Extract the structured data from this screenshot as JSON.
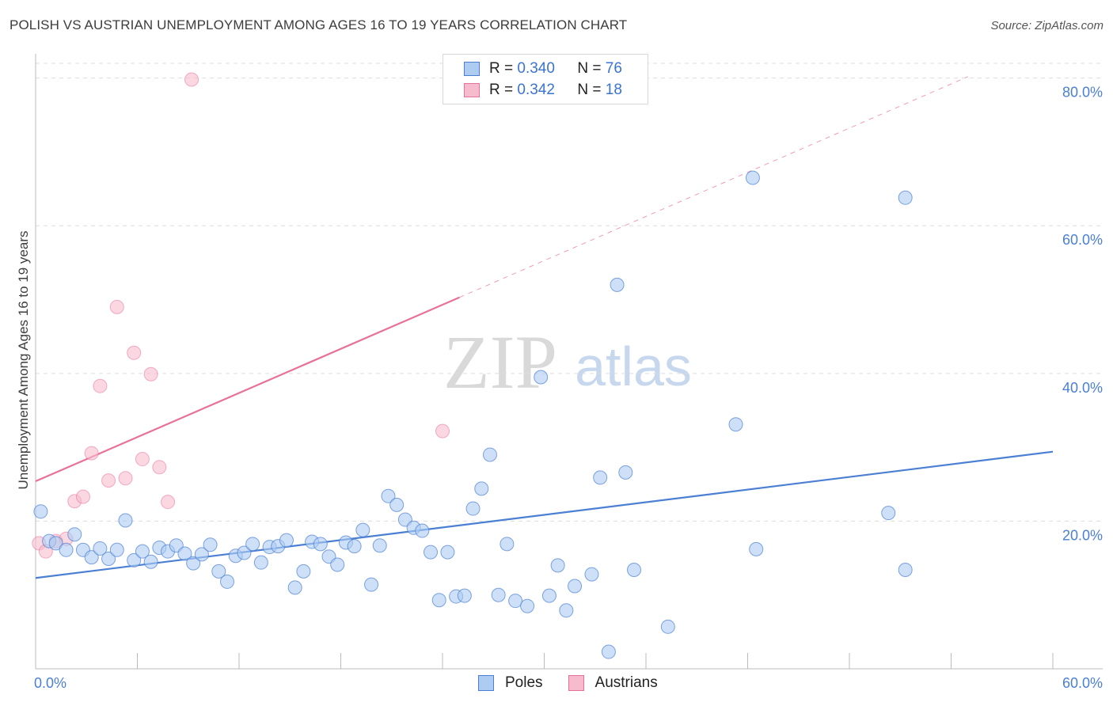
{
  "header": {
    "title": "POLISH VS AUSTRIAN UNEMPLOYMENT AMONG AGES 16 TO 19 YEARS CORRELATION CHART",
    "source": "Source: ZipAtlas.com"
  },
  "watermark": {
    "zip": "ZIP",
    "atlas": "atlas"
  },
  "colors": {
    "poles": "#4a7fd4",
    "poles_fill": "#aecbf2",
    "austrians": "#e8719a",
    "austrians_fill": "#f6bccd",
    "axis_text": "#4a7fd4"
  },
  "legend": {
    "rows": [
      {
        "r_label": "R =",
        "r_value": "0.340",
        "n_label": "N =",
        "n_value": "76"
      },
      {
        "r_label": "R =",
        "r_value": "0.342",
        "n_label": "N =",
        "n_value": "18"
      }
    ],
    "bottom": [
      "Poles",
      "Austrians"
    ]
  },
  "chart_data": {
    "type": "scatter",
    "title": "POLISH VS AUSTRIAN UNEMPLOYMENT AMONG AGES 16 TO 19 YEARS CORRELATION CHART",
    "xlabel": "",
    "ylabel": "Unemployment Among Ages 16 to 19 years",
    "xlim": [
      0,
      60
    ],
    "ylim": [
      0,
      82
    ],
    "x_tick_labels": [
      "0.0%",
      "60.0%"
    ],
    "y_ticks": [
      20,
      40,
      60,
      80
    ],
    "y_tick_labels": [
      "20.0%",
      "40.0%",
      "60.0%",
      "80.0%"
    ],
    "grid": true,
    "legend_position": "top-center",
    "series": [
      {
        "name": "Poles",
        "r": 0.34,
        "n": 76,
        "trend": {
          "x": [
            0,
            60
          ],
          "y": [
            12.3,
            29.4
          ]
        },
        "points": [
          [
            0.3,
            21.3
          ],
          [
            0.8,
            17.3
          ],
          [
            1.2,
            17.0
          ],
          [
            1.8,
            16.1
          ],
          [
            2.3,
            18.2
          ],
          [
            2.8,
            16.1
          ],
          [
            3.3,
            15.1
          ],
          [
            3.8,
            16.3
          ],
          [
            4.3,
            14.9
          ],
          [
            4.8,
            16.1
          ],
          [
            5.3,
            20.1
          ],
          [
            5.8,
            14.7
          ],
          [
            6.3,
            15.9
          ],
          [
            6.8,
            14.5
          ],
          [
            7.3,
            16.4
          ],
          [
            7.8,
            15.9
          ],
          [
            8.3,
            16.7
          ],
          [
            8.8,
            15.6
          ],
          [
            9.3,
            14.3
          ],
          [
            9.8,
            15.5
          ],
          [
            10.3,
            16.8
          ],
          [
            10.8,
            13.2
          ],
          [
            11.3,
            11.8
          ],
          [
            11.8,
            15.3
          ],
          [
            12.3,
            15.7
          ],
          [
            12.8,
            16.9
          ],
          [
            13.3,
            14.4
          ],
          [
            13.8,
            16.5
          ],
          [
            14.3,
            16.6
          ],
          [
            14.8,
            17.4
          ],
          [
            15.3,
            11.0
          ],
          [
            15.8,
            13.2
          ],
          [
            16.3,
            17.2
          ],
          [
            16.8,
            16.9
          ],
          [
            17.3,
            15.2
          ],
          [
            17.8,
            14.1
          ],
          [
            18.3,
            17.1
          ],
          [
            18.8,
            16.6
          ],
          [
            19.3,
            18.8
          ],
          [
            19.8,
            11.4
          ],
          [
            20.3,
            16.7
          ],
          [
            20.8,
            23.4
          ],
          [
            21.3,
            22.2
          ],
          [
            21.8,
            20.2
          ],
          [
            22.3,
            19.1
          ],
          [
            22.8,
            18.7
          ],
          [
            23.3,
            15.8
          ],
          [
            23.8,
            9.3
          ],
          [
            24.3,
            15.8
          ],
          [
            24.8,
            9.8
          ],
          [
            25.3,
            9.9
          ],
          [
            25.8,
            21.7
          ],
          [
            26.3,
            24.4
          ],
          [
            26.8,
            29.0
          ],
          [
            27.3,
            10.0
          ],
          [
            27.8,
            16.9
          ],
          [
            28.3,
            9.2
          ],
          [
            29.0,
            8.5
          ],
          [
            29.8,
            39.5
          ],
          [
            30.3,
            9.9
          ],
          [
            30.8,
            14.0
          ],
          [
            31.3,
            7.9
          ],
          [
            31.8,
            11.2
          ],
          [
            32.8,
            12.8
          ],
          [
            33.3,
            25.9
          ],
          [
            33.8,
            2.3
          ],
          [
            34.3,
            52.0
          ],
          [
            34.8,
            26.6
          ],
          [
            35.3,
            13.4
          ],
          [
            37.3,
            5.7
          ],
          [
            41.3,
            33.1
          ],
          [
            42.3,
            66.5
          ],
          [
            42.5,
            16.2
          ],
          [
            50.3,
            21.1
          ],
          [
            51.3,
            13.4
          ],
          [
            51.3,
            63.8
          ]
        ]
      },
      {
        "name": "Austrians",
        "r": 0.342,
        "n": 18,
        "trend_solid": {
          "x": [
            0,
            25
          ],
          "y": [
            25.4,
            50.3
          ]
        },
        "trend_dashed": {
          "x": [
            25,
            55
          ],
          "y": [
            50.3,
            80.2
          ]
        },
        "points": [
          [
            0.2,
            17.0
          ],
          [
            0.6,
            15.9
          ],
          [
            1.2,
            17.3
          ],
          [
            1.8,
            17.6
          ],
          [
            2.3,
            22.7
          ],
          [
            2.8,
            23.3
          ],
          [
            3.3,
            29.2
          ],
          [
            3.8,
            38.3
          ],
          [
            4.3,
            25.5
          ],
          [
            4.8,
            49.0
          ],
          [
            5.3,
            25.8
          ],
          [
            5.8,
            42.8
          ],
          [
            6.3,
            28.4
          ],
          [
            6.8,
            39.9
          ],
          [
            7.3,
            27.3
          ],
          [
            7.8,
            22.6
          ],
          [
            9.2,
            79.8
          ],
          [
            24.0,
            32.2
          ]
        ]
      }
    ]
  }
}
